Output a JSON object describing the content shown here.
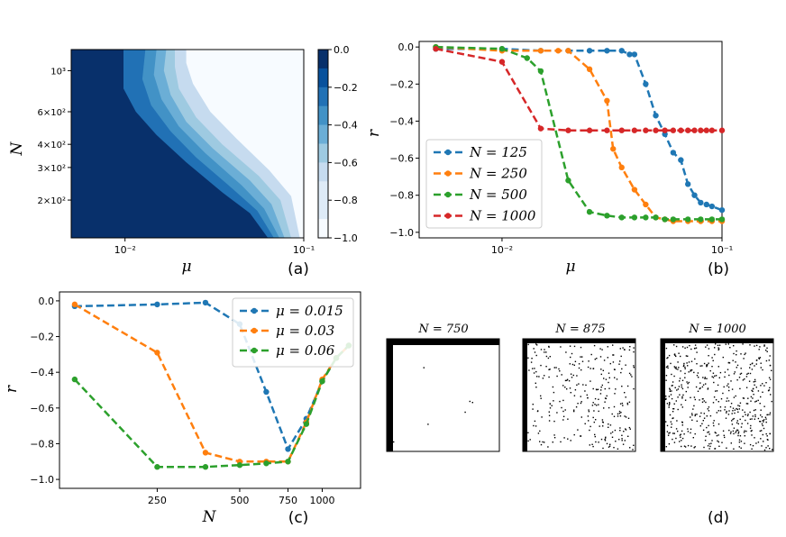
{
  "colors": {
    "c125": "#1f77b4",
    "c250": "#ff7f0e",
    "c500": "#2ca02c",
    "c1000": "#d62728",
    "blues": [
      "#08306b",
      "#08519c",
      "#2171b5",
      "#4292c6",
      "#6baed6",
      "#9ecae1",
      "#c6dbef",
      "#deebf7",
      "#f7fbff"
    ]
  },
  "chart_data": [
    {
      "type": "heatmap",
      "panel": "(a)",
      "xlabel": "μ",
      "ylabel": "N",
      "x_scale": "log",
      "y_scale": "log",
      "xlim": [
        0.005,
        0.1
      ],
      "ylim": [
        125,
        1300
      ],
      "xticks": [
        {
          "value": 0.01,
          "label": "10⁻²"
        },
        {
          "value": 0.1,
          "label": "10⁻¹"
        }
      ],
      "yticks": [
        {
          "value": 200,
          "label": "2×10²"
        },
        {
          "value": 300,
          "label": "3×10²"
        },
        {
          "value": 400,
          "label": "4×10²"
        },
        {
          "value": 600,
          "label": "6×10²"
        },
        {
          "value": 1000,
          "label": "10³"
        }
      ],
      "colorbar": {
        "ticks": [
          {
            "value": 0.0,
            "label": "0.0"
          },
          {
            "value": -0.2,
            "label": "−0.2"
          },
          {
            "value": -0.4,
            "label": "−0.4"
          },
          {
            "value": -0.6,
            "label": "−0.6"
          },
          {
            "value": -0.8,
            "label": "−0.8"
          },
          {
            "value": -1.0,
            "label": "−1.0"
          }
        ],
        "levels": [
          0,
          -0.1,
          -0.2,
          -0.3,
          -0.4,
          -0.5,
          -0.6,
          -0.7,
          -0.8,
          -0.9,
          -1.0
        ]
      },
      "contours": [
        {
          "level": 0.0,
          "boundary": [
            [
              0.0098,
              1300
            ],
            [
              0.0098,
              800
            ],
            [
              0.0115,
              600
            ],
            [
              0.015,
              450
            ],
            [
              0.022,
              320
            ],
            [
              0.035,
              220
            ],
            [
              0.05,
              170
            ],
            [
              0.063,
              125
            ]
          ]
        },
        {
          "level": -0.2,
          "boundary": [
            [
              0.013,
              1300
            ],
            [
              0.0125,
              900
            ],
            [
              0.014,
              650
            ],
            [
              0.018,
              470
            ],
            [
              0.025,
              340
            ],
            [
              0.04,
              230
            ],
            [
              0.055,
              175
            ],
            [
              0.068,
              125
            ]
          ]
        },
        {
          "level": -0.4,
          "boundary": [
            [
              0.015,
              1300
            ],
            [
              0.0145,
              950
            ],
            [
              0.016,
              700
            ],
            [
              0.02,
              500
            ],
            [
              0.028,
              360
            ],
            [
              0.045,
              240
            ],
            [
              0.06,
              180
            ],
            [
              0.073,
              125
            ]
          ]
        },
        {
          "level": -0.6,
          "boundary": [
            [
              0.017,
              1300
            ],
            [
              0.0165,
              1000
            ],
            [
              0.018,
              740
            ],
            [
              0.022,
              530
            ],
            [
              0.031,
              380
            ],
            [
              0.05,
              255
            ],
            [
              0.066,
              190
            ],
            [
              0.078,
              125
            ]
          ]
        },
        {
          "level": -0.8,
          "boundary": [
            [
              0.019,
              1300
            ],
            [
              0.019,
              1050
            ],
            [
              0.02,
              800
            ],
            [
              0.025,
              560
            ],
            [
              0.035,
              400
            ],
            [
              0.056,
              270
            ],
            [
              0.074,
              200
            ],
            [
              0.085,
              125
            ]
          ]
        },
        {
          "level": -0.9,
          "boundary": [
            [
              0.022,
              1300
            ],
            [
              0.022,
              1100
            ],
            [
              0.024,
              850
            ],
            [
              0.03,
              600
            ],
            [
              0.042,
              430
            ],
            [
              0.064,
              290
            ],
            [
              0.085,
              210
            ],
            [
              0.095,
              125
            ]
          ]
        }
      ]
    },
    {
      "type": "line",
      "panel": "(b)",
      "xlabel": "μ",
      "ylabel": "r",
      "x_scale": "log",
      "xlim": [
        0.0042,
        0.1
      ],
      "ylim": [
        -1.03,
        0.03
      ],
      "xticks": [
        {
          "value": 0.01,
          "label": "10⁻²"
        },
        {
          "value": 0.1,
          "label": "10⁻¹"
        }
      ],
      "yticks": [
        {
          "value": 0.0,
          "label": "0.0"
        },
        {
          "value": -0.2,
          "label": "−0.2"
        },
        {
          "value": -0.4,
          "label": "−0.4"
        },
        {
          "value": -0.6,
          "label": "−0.6"
        },
        {
          "value": -0.8,
          "label": "−0.8"
        },
        {
          "value": -1.0,
          "label": "−1.0"
        }
      ],
      "legend_position": "lower-left",
      "series": [
        {
          "name": "N = 125",
          "color_key": "c125",
          "x": [
            0.005,
            0.01,
            0.015,
            0.02,
            0.025,
            0.03,
            0.035,
            0.038,
            0.04,
            0.045,
            0.05,
            0.055,
            0.06,
            0.065,
            0.07,
            0.075,
            0.08,
            0.085,
            0.09,
            0.1
          ],
          "y": [
            -0.01,
            -0.01,
            -0.02,
            -0.02,
            -0.02,
            -0.02,
            -0.02,
            -0.04,
            -0.04,
            -0.2,
            -0.37,
            -0.47,
            -0.57,
            -0.61,
            -0.74,
            -0.8,
            -0.84,
            -0.85,
            -0.86,
            -0.88
          ]
        },
        {
          "name": "N = 250",
          "color_key": "c250",
          "x": [
            0.005,
            0.01,
            0.015,
            0.018,
            0.02,
            0.025,
            0.03,
            0.032,
            0.035,
            0.04,
            0.045,
            0.05,
            0.055,
            0.06,
            0.07,
            0.08,
            0.09,
            0.1
          ],
          "y": [
            0.0,
            -0.02,
            -0.02,
            -0.02,
            -0.02,
            -0.12,
            -0.29,
            -0.55,
            -0.65,
            -0.77,
            -0.85,
            -0.92,
            -0.93,
            -0.94,
            -0.94,
            -0.94,
            -0.94,
            -0.94
          ]
        },
        {
          "name": "N = 500",
          "color_key": "c500",
          "x": [
            0.005,
            0.01,
            0.013,
            0.015,
            0.02,
            0.025,
            0.03,
            0.035,
            0.04,
            0.045,
            0.05,
            0.055,
            0.06,
            0.07,
            0.08,
            0.09,
            0.1
          ],
          "y": [
            0.0,
            -0.01,
            -0.06,
            -0.13,
            -0.72,
            -0.89,
            -0.91,
            -0.92,
            -0.92,
            -0.92,
            -0.92,
            -0.93,
            -0.93,
            -0.93,
            -0.93,
            -0.93,
            -0.93
          ]
        },
        {
          "name": "N = 1000",
          "color_key": "c1000",
          "x": [
            0.005,
            0.01,
            0.015,
            0.02,
            0.025,
            0.03,
            0.035,
            0.04,
            0.045,
            0.05,
            0.055,
            0.06,
            0.065,
            0.07,
            0.075,
            0.08,
            0.085,
            0.09,
            0.1
          ],
          "y": [
            -0.01,
            -0.08,
            -0.44,
            -0.45,
            -0.45,
            -0.45,
            -0.45,
            -0.45,
            -0.45,
            -0.45,
            -0.45,
            -0.45,
            -0.45,
            -0.45,
            -0.45,
            -0.45,
            -0.45,
            -0.45,
            -0.45
          ]
        }
      ]
    },
    {
      "type": "line",
      "panel": "(c)",
      "xlabel": "N",
      "ylabel": "r",
      "x_scale": "log",
      "xlim": [
        110,
        1380
      ],
      "ylim": [
        -1.05,
        0.05
      ],
      "xticks": [
        {
          "value": 250,
          "label": "250"
        },
        {
          "value": 500,
          "label": "500"
        },
        {
          "value": 750,
          "label": "750"
        },
        {
          "value": 1000,
          "label": "1000"
        }
      ],
      "yticks": [
        {
          "value": 0.0,
          "label": "0.0"
        },
        {
          "value": -0.2,
          "label": "−0.2"
        },
        {
          "value": -0.4,
          "label": "−0.4"
        },
        {
          "value": -0.6,
          "label": "−0.6"
        },
        {
          "value": -0.8,
          "label": "−0.8"
        },
        {
          "value": -1.0,
          "label": "−1.0"
        }
      ],
      "legend_position": "top-right",
      "series": [
        {
          "name": "μ = 0.015",
          "color_key": "c125",
          "x": [
            125,
            250,
            375,
            500,
            625,
            750,
            875,
            1000,
            1125,
            1250
          ],
          "y": [
            -0.03,
            -0.02,
            -0.01,
            -0.13,
            -0.51,
            -0.83,
            -0.66,
            -0.45,
            -0.32,
            -0.25
          ]
        },
        {
          "name": "μ = 0.03",
          "color_key": "c250",
          "x": [
            125,
            250,
            375,
            500,
            625,
            750,
            875,
            1000,
            1125,
            1250
          ],
          "y": [
            -0.02,
            -0.29,
            -0.85,
            -0.9,
            -0.9,
            -0.9,
            -0.68,
            -0.44,
            -0.32,
            -0.25
          ]
        },
        {
          "name": "μ = 0.06",
          "color_key": "c500",
          "x": [
            125,
            250,
            375,
            500,
            625,
            750,
            875,
            1000,
            1125,
            1250
          ],
          "y": [
            -0.44,
            -0.93,
            -0.93,
            -0.92,
            -0.91,
            -0.9,
            -0.69,
            -0.45,
            -0.32,
            -0.25
          ]
        }
      ]
    },
    {
      "type": "image-grid",
      "panel": "(d)",
      "panels": [
        {
          "title": "N = 750",
          "density": "sparse"
        },
        {
          "title": "N = 875",
          "density": "medium"
        },
        {
          "title": "N = 1000",
          "density": "dense"
        }
      ]
    }
  ]
}
